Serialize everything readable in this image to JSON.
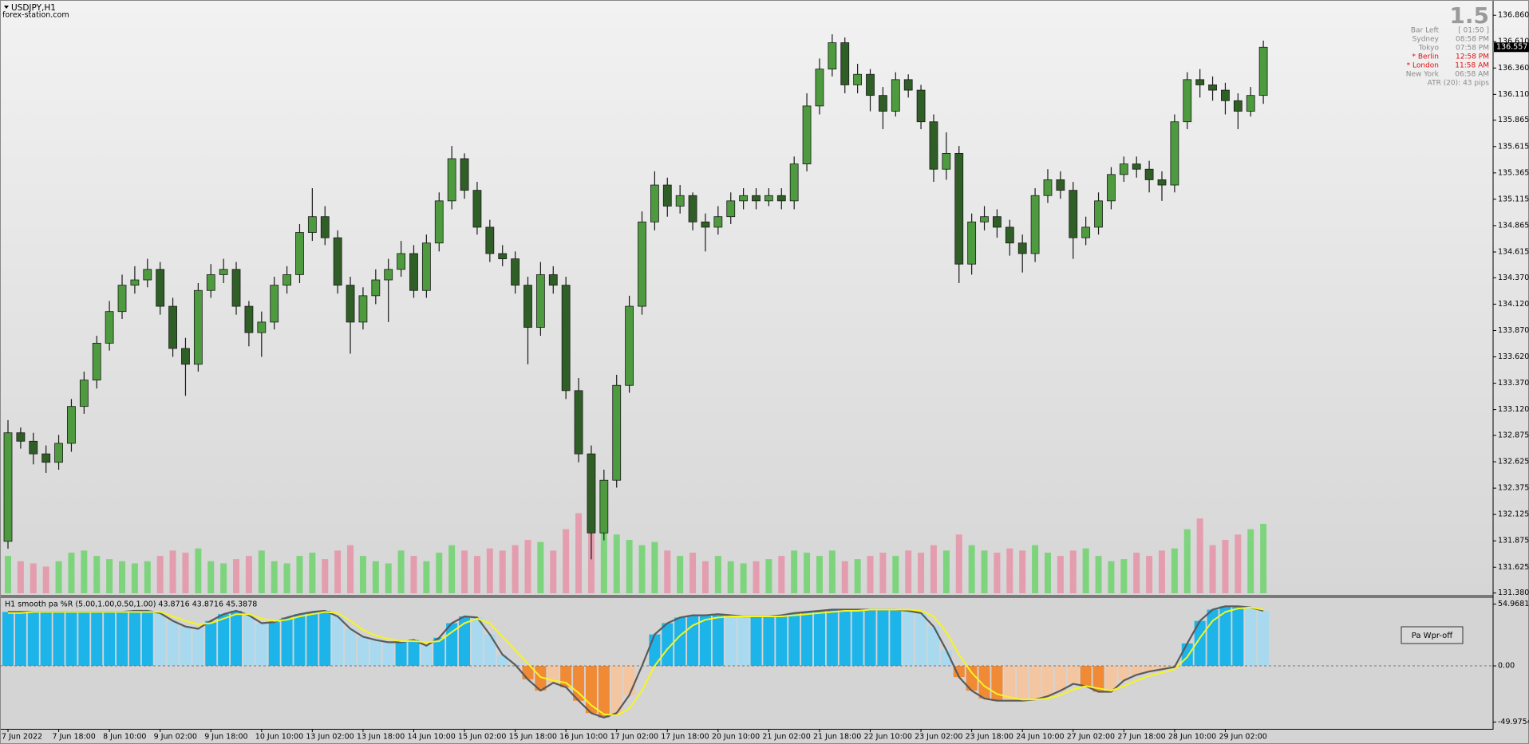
{
  "chart_data": [
    {
      "type": "candlestick",
      "title": "USDJPY,H1",
      "subtitle": "forex-station.com",
      "categories": [
        "7 Jun 2022",
        null,
        null,
        null,
        "7 Jun 18:00",
        null,
        null,
        null,
        "8 Jun 10:00",
        null,
        null,
        null,
        "9 Jun 02:00",
        null,
        null,
        null,
        "9 Jun 18:00",
        null,
        null,
        null,
        "10 Jun 10:00",
        null,
        null,
        null,
        "13 Jun 02:00",
        null,
        null,
        null,
        "13 Jun 18:00",
        null,
        null,
        null,
        "14 Jun 10:00",
        null,
        null,
        null,
        "15 Jun 02:00",
        null,
        null,
        null,
        "15 Jun 18:00",
        null,
        null,
        null,
        "16 Jun 10:00",
        null,
        null,
        null,
        "17 Jun 02:00",
        null,
        null,
        null,
        "17 Jun 18:00",
        null,
        null,
        null,
        "20 Jun 10:00",
        null,
        null,
        null,
        "21 Jun 02:00",
        null,
        null,
        null,
        "21 Jun 18:00",
        null,
        null,
        null,
        "22 Jun 10:00",
        null,
        null,
        null,
        "23 Jun 02:00",
        null,
        null,
        null,
        "23 Jun 18:00",
        null,
        null,
        null,
        "24 Jun 10:00",
        null,
        null,
        null,
        "27 Jun 02:00",
        null,
        null,
        null,
        "27 Jun 18:00",
        null,
        null,
        null,
        "28 Jun 10:00",
        null,
        null,
        null,
        "29 Jun 02:00",
        null,
        null,
        null
      ],
      "open": [
        131.87,
        132.9,
        132.82,
        132.7,
        132.62,
        132.8,
        133.15,
        133.4,
        133.75,
        134.05,
        134.3,
        134.35,
        134.45,
        134.1,
        133.7,
        133.55,
        134.25,
        134.4,
        134.45,
        134.1,
        133.85,
        133.95,
        134.3,
        134.4,
        134.8,
        134.95,
        134.75,
        134.3,
        133.95,
        134.2,
        134.35,
        134.45,
        134.6,
        134.25,
        134.7,
        135.1,
        135.5,
        135.2,
        134.85,
        134.6,
        134.55,
        134.3,
        133.9,
        134.4,
        134.3,
        133.3,
        132.7,
        131.95,
        132.45,
        133.35,
        134.1,
        134.9,
        135.25,
        135.05,
        135.15,
        134.9,
        134.85,
        134.95,
        135.1,
        135.15,
        135.1,
        135.15,
        135.1,
        135.45,
        136.0,
        136.35,
        136.6,
        136.2,
        136.3,
        136.1,
        135.95,
        136.25,
        136.15,
        135.85,
        135.4,
        135.55,
        134.5,
        134.9,
        134.95,
        134.85,
        134.7,
        134.6,
        135.15,
        135.3,
        135.2,
        134.75,
        134.85,
        135.1,
        135.35,
        135.45,
        135.4,
        135.3,
        135.25,
        135.85,
        136.25,
        136.2,
        136.15,
        136.05,
        135.95,
        136.1
      ],
      "high": [
        133.02,
        132.95,
        132.9,
        132.78,
        132.88,
        133.22,
        133.48,
        133.82,
        134.15,
        134.4,
        134.48,
        134.55,
        134.52,
        134.18,
        133.8,
        134.32,
        134.5,
        134.55,
        134.52,
        134.15,
        134.05,
        134.38,
        134.48,
        134.88,
        135.22,
        135.05,
        134.82,
        134.38,
        134.28,
        134.45,
        134.55,
        134.72,
        134.68,
        134.78,
        135.18,
        135.62,
        135.55,
        135.28,
        134.92,
        134.68,
        134.62,
        134.38,
        134.52,
        134.48,
        134.38,
        133.42,
        132.78,
        132.55,
        133.45,
        134.2,
        135.0,
        135.38,
        135.32,
        135.25,
        135.18,
        134.98,
        135.05,
        135.18,
        135.22,
        135.22,
        135.22,
        135.22,
        135.52,
        136.12,
        136.45,
        136.68,
        136.65,
        136.4,
        136.35,
        136.18,
        136.32,
        136.3,
        136.2,
        135.92,
        135.75,
        135.62,
        134.98,
        135.05,
        135.02,
        134.92,
        134.78,
        135.22,
        135.4,
        135.38,
        135.28,
        134.95,
        135.18,
        135.42,
        135.52,
        135.52,
        135.48,
        135.38,
        135.92,
        136.32,
        136.35,
        136.28,
        136.22,
        136.12,
        136.18,
        136.62
      ],
      "low": [
        131.8,
        132.75,
        132.6,
        132.52,
        132.55,
        132.72,
        133.08,
        133.32,
        133.68,
        133.98,
        134.22,
        134.28,
        134.02,
        133.62,
        133.25,
        133.48,
        134.18,
        134.32,
        134.02,
        133.72,
        133.62,
        133.88,
        134.22,
        134.32,
        134.72,
        134.68,
        134.22,
        133.65,
        133.88,
        134.12,
        133.95,
        134.38,
        134.18,
        134.18,
        134.62,
        135.02,
        135.12,
        134.78,
        134.52,
        134.48,
        134.22,
        133.55,
        133.82,
        134.22,
        133.22,
        132.62,
        131.7,
        131.88,
        132.38,
        133.28,
        134.02,
        134.82,
        134.95,
        134.98,
        134.82,
        134.62,
        134.78,
        134.88,
        135.02,
        135.02,
        135.05,
        135.02,
        135.02,
        135.38,
        135.92,
        136.28,
        136.12,
        136.12,
        135.95,
        135.78,
        135.9,
        136.08,
        135.78,
        135.28,
        135.3,
        134.32,
        134.4,
        134.82,
        134.75,
        134.58,
        134.42,
        134.52,
        135.08,
        135.12,
        134.55,
        134.68,
        134.78,
        135.02,
        135.28,
        135.32,
        135.18,
        135.1,
        135.18,
        135.78,
        136.08,
        136.05,
        135.92,
        135.78,
        135.9,
        136.02
      ],
      "close": [
        132.9,
        132.82,
        132.7,
        132.62,
        132.8,
        133.15,
        133.4,
        133.75,
        134.05,
        134.3,
        134.35,
        134.45,
        134.1,
        133.7,
        133.55,
        134.25,
        134.4,
        134.45,
        134.1,
        133.85,
        133.95,
        134.3,
        134.4,
        134.8,
        134.95,
        134.75,
        134.3,
        133.95,
        134.2,
        134.35,
        134.45,
        134.6,
        134.25,
        134.7,
        135.1,
        135.5,
        135.2,
        134.85,
        134.6,
        134.55,
        134.3,
        133.9,
        134.4,
        134.3,
        133.3,
        132.7,
        131.95,
        132.45,
        133.35,
        134.1,
        134.9,
        135.25,
        135.05,
        135.15,
        134.9,
        134.85,
        134.95,
        135.1,
        135.15,
        135.1,
        135.15,
        135.1,
        135.45,
        136.0,
        136.35,
        136.6,
        136.2,
        136.3,
        136.1,
        135.95,
        136.25,
        136.15,
        135.85,
        135.4,
        135.55,
        134.5,
        134.9,
        134.95,
        134.85,
        134.7,
        134.6,
        135.15,
        135.3,
        135.2,
        134.75,
        134.85,
        135.1,
        135.35,
        135.45,
        135.4,
        135.3,
        135.25,
        135.85,
        136.25,
        136.2,
        136.15,
        136.05,
        135.95,
        136.1,
        136.557
      ],
      "up_color": "#4e9a3e",
      "down_color": "#2f5e26",
      "wick_color": "#1a1a1a",
      "ylim": [
        131.37,
        136.99
      ],
      "yticks": [
        {
          "value": 136.86,
          "label": "136.860"
        },
        {
          "value": 136.61,
          "label": "136.610"
        },
        {
          "value": 136.36,
          "label": "136.360"
        },
        {
          "value": 136.11,
          "label": "136.110"
        },
        135.865,
        135.615,
        135.365,
        135.115,
        134.865,
        134.615,
        {
          "value": 134.37,
          "label": "134.370"
        },
        {
          "value": 134.12,
          "label": "134.120"
        },
        {
          "value": 133.87,
          "label": "133.870"
        },
        {
          "value": 133.62,
          "label": "133.620"
        },
        {
          "value": 133.37,
          "label": "133.370"
        },
        {
          "value": 133.12,
          "label": "133.120"
        },
        132.875,
        132.625,
        132.375,
        132.125,
        131.875,
        131.625,
        {
          "value": 131.38,
          "label": "131.380"
        }
      ],
      "volume": {
        "values": [
          35,
          30,
          28,
          25,
          30,
          38,
          40,
          35,
          32,
          30,
          28,
          30,
          35,
          40,
          38,
          42,
          30,
          28,
          32,
          35,
          40,
          30,
          28,
          35,
          38,
          32,
          40,
          45,
          35,
          30,
          28,
          40,
          35,
          30,
          38,
          45,
          40,
          35,
          42,
          40,
          45,
          50,
          48,
          40,
          60,
          75,
          85,
          70,
          55,
          50,
          45,
          48,
          40,
          35,
          38,
          30,
          35,
          30,
          28,
          30,
          32,
          35,
          40,
          38,
          35,
          40,
          30,
          32,
          35,
          38,
          35,
          40,
          38,
          45,
          40,
          55,
          45,
          40,
          38,
          42,
          40,
          45,
          38,
          35,
          40,
          42,
          35,
          30,
          32,
          38,
          35,
          40,
          42,
          60,
          70,
          45,
          50,
          55,
          60,
          65
        ],
        "ylim": [
          0,
          100
        ],
        "up_color": "#5fd35f",
        "down_color": "#e88aa0"
      },
      "spread": "1.5",
      "info": [
        {
          "label": "Bar Left",
          "value": "[ 01:50 ]",
          "color": "#8a8a8a"
        },
        {
          "label": "Sydney",
          "value": "08:58 PM",
          "color": "#8a8a8a"
        },
        {
          "label": "Tokyo",
          "value": "07:58 PM",
          "color": "#8a8a8a"
        },
        {
          "label": "* Berlin",
          "value": "12:58 PM",
          "color": "#e01010"
        },
        {
          "label": "* London",
          "value": "11:58 AM",
          "color": "#e01010"
        },
        {
          "label": "New York",
          "value": "06:58 AM",
          "color": "#8a8a8a"
        }
      ],
      "atr": "ATR (20): 43 pips"
    },
    {
      "type": "bar",
      "title": "H1 smooth pa %R (5.00,1.00,0.50,1.00) 43.8716 43.8716 45.3878",
      "values": [
        48,
        48,
        48,
        48,
        48,
        48,
        48,
        48,
        48,
        48,
        49,
        49,
        47,
        40,
        35,
        33,
        40,
        46,
        49,
        45,
        38,
        39,
        43,
        46,
        48,
        49,
        44,
        33,
        26,
        23,
        21,
        21,
        23,
        18,
        25,
        38,
        44,
        43,
        28,
        10,
        1,
        -12,
        -22,
        -15,
        -19,
        -31,
        -42,
        -46,
        -42,
        -26,
        0,
        28,
        38,
        43,
        45,
        45,
        46,
        45,
        44,
        44,
        44,
        45,
        47,
        48,
        49,
        50,
        50,
        50,
        50,
        50,
        50,
        49,
        47,
        35,
        14,
        -10,
        -22,
        -29,
        -31,
        -31,
        -31,
        -30,
        -27,
        -22,
        -16,
        -18,
        -23,
        -23,
        -13,
        -8,
        -5,
        -3,
        -1,
        20,
        40,
        50,
        53,
        53,
        52,
        49
      ],
      "signal": [
        47,
        47,
        48,
        48,
        48,
        48,
        48,
        48,
        48,
        48,
        48,
        48,
        48,
        44,
        40,
        37,
        38,
        42,
        46,
        46,
        42,
        40,
        41,
        44,
        46,
        48,
        47,
        40,
        32,
        27,
        24,
        22,
        22,
        21,
        22,
        30,
        38,
        42,
        38,
        26,
        14,
        2,
        -10,
        -13,
        -15,
        -24,
        -35,
        -43,
        -44,
        -38,
        -22,
        0,
        15,
        27,
        36,
        41,
        43,
        44,
        44,
        44,
        44,
        44,
        45,
        46,
        47,
        48,
        49,
        49,
        50,
        50,
        50,
        50,
        49,
        44,
        30,
        10,
        -6,
        -18,
        -25,
        -28,
        -30,
        -30,
        -29,
        -26,
        -21,
        -18,
        -20,
        -22,
        -18,
        -13,
        -9,
        -6,
        -3,
        8,
        25,
        40,
        48,
        51,
        52,
        50
      ],
      "colors": {
        "pos_up": "#1db4ea",
        "pos_down": "#a9d9ef",
        "neg_down": "#f08a35",
        "neg_up": "#f3c5a0",
        "line": "#5a5a5a",
        "signal": "#f5f520"
      },
      "ylim": [
        -55.3,
        58.9
      ],
      "yticks": [
        54.9681,
        {
          "value": 0,
          "label": "0.00"
        },
        -49.9754
      ],
      "button": "Pa Wpr-off"
    }
  ]
}
